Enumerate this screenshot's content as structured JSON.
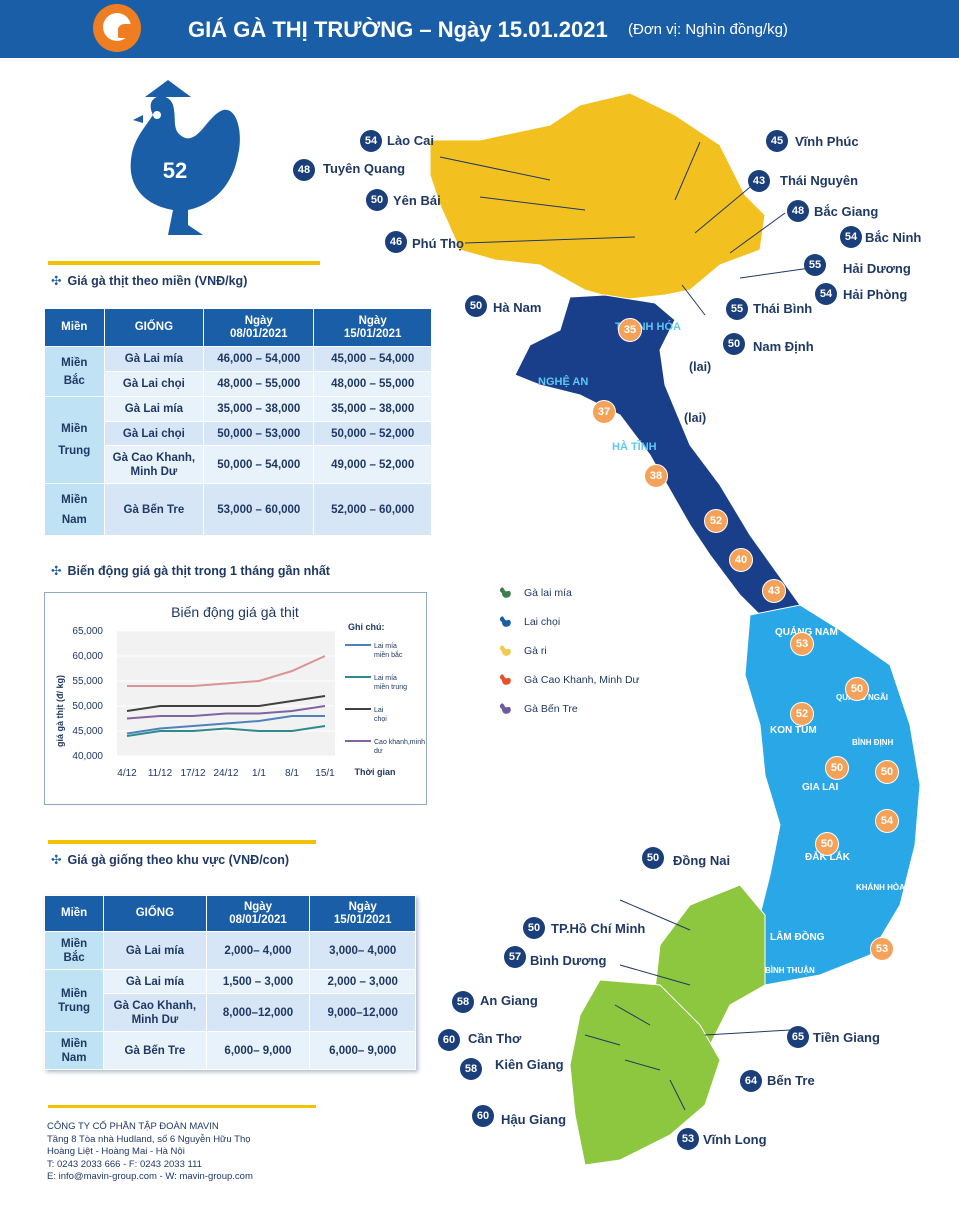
{
  "header": {
    "title": "GIÁ GÀ THỊ TRƯỜNG – Ngày 15.01.2021",
    "unit": "(Đơn vị: Nghìn đồng/kg)"
  },
  "hero": {
    "value": "52"
  },
  "regional_meat": {
    "title": "Giá gà thịt theo miền (VNĐ/kg)",
    "headers": [
      "Miền",
      "GIỐNG",
      "Ngày\n08/01/2021",
      "Ngày\n15/01/2021"
    ],
    "rows": [
      {
        "region": "Miền\nBắc",
        "breed": "Gà Lai mía",
        "d1": "46,000 – 54,000",
        "d2": "45,000 – 54,000"
      },
      {
        "region": "",
        "breed": "Gà Lai chọi",
        "d1": "48,000 – 55,000",
        "d2": "48,000 – 55,000"
      },
      {
        "region": "Miền\nTrung",
        "breed": "Gà Lai mía",
        "d1": "35,000 – 38,000",
        "d2": "35,000 – 38,000"
      },
      {
        "region": "",
        "breed": "Gà Lai chọi",
        "d1": "50,000 – 53,000",
        "d2": "50,000 – 52,000"
      },
      {
        "region": "",
        "breed": "Gà Cao Khanh,\nMinh Dư",
        "d1": "50,000 – 54,000",
        "d2": "49,000 – 52,000"
      },
      {
        "region": "Miền\nNam",
        "breed": "Gà Bến Tre",
        "d1": "53,000 – 60,000",
        "d2": "52,000 – 60,000"
      }
    ]
  },
  "trend_section": {
    "title": "Biến động giá gà thịt trong 1 tháng gần nhất"
  },
  "chart_data": {
    "type": "line",
    "title": "Biến động giá gà thịt",
    "xlabel": "Thời gian",
    "ylabel": "giá gà thịt (đ/ kg)",
    "categories": [
      "4/12",
      "11/12",
      "17/12",
      "24/12",
      "1/1",
      "8/1",
      "15/1"
    ],
    "ylim": [
      40000,
      65000
    ],
    "yticks": [
      "40,000",
      "45,000",
      "50,000",
      "55,000",
      "60,000",
      "65,000"
    ],
    "legend_title": "Ghi chú:",
    "legend_position": "right",
    "series": [
      {
        "name": "Lai mía miền bắc",
        "color": "#4f81bd",
        "values": [
          44500,
          45500,
          46000,
          46500,
          47000,
          48000,
          48000
        ]
      },
      {
        "name": "Lai mía miền trung",
        "color": "#2f8b8b",
        "values": [
          44000,
          45000,
          45000,
          45500,
          45000,
          45000,
          46000
        ]
      },
      {
        "name": "Lai chọi",
        "color": "#404040",
        "values": [
          49000,
          50000,
          50000,
          50000,
          50000,
          51000,
          52000
        ]
      },
      {
        "name": "Cao khanh,minh dư",
        "color": "#8064a2",
        "values": [
          47500,
          48000,
          48000,
          48500,
          48500,
          49000,
          50000
        ]
      },
      {
        "name": "",
        "color": "#d99594",
        "values": [
          54000,
          54000,
          54000,
          54500,
          55000,
          57000,
          60000
        ]
      }
    ]
  },
  "seed_section": {
    "title": "Giá gà giống theo khu vực (VNĐ/con)"
  },
  "seed_table": {
    "headers": [
      "Miền",
      "GIỐNG",
      "Ngày\n08/01/2021",
      "Ngày\n15/01/2021"
    ],
    "rows": [
      {
        "region": "Miền\nBắc",
        "breed": "Gà Lai mía",
        "d1": "2,000– 4,000",
        "d2": "3,000– 4,000"
      },
      {
        "region": "Miền\nTrung",
        "breed": "Gà Lai mía",
        "d1": "1,500 – 3,000",
        "d2": "2,000 – 3,000"
      },
      {
        "region": "",
        "breed": "Gà Cao Khanh,\nMinh Dư",
        "d1": "8,000–12,000",
        "d2": "9,000–12,000"
      },
      {
        "region": "Miền\nNam",
        "breed": "Gà Bến Tre",
        "d1": "6,000– 9,000",
        "d2": "6,000– 9,000"
      }
    ]
  },
  "footer": {
    "company": "CÔNG TY CỔ PHẦN TẬP ĐOÀN MAVIN",
    "address1": "Tầng 8 Tòa nhà Hudland, số 6 Nguyễn Hữu Thọ",
    "address2": "Hoàng Liệt - Hoàng Mai - Hà Nội",
    "phone": "T: 0243 2033 666 - F: 0243 2033 111",
    "email": "E: info@mavin-group.com -  W: mavin-group.com"
  },
  "map": {
    "legend": [
      {
        "label": "Gà lai mía",
        "color": "#3f7f4f"
      },
      {
        "label": "Lai chọi",
        "color": "#1a5ea8"
      },
      {
        "label": "Gà ri",
        "color": "#f2c94c"
      },
      {
        "label": "Gà Cao Khanh, Minh Dư",
        "color": "#e8502a"
      },
      {
        "label": "Gà Bến Tre",
        "color": "#6e5a9c"
      }
    ],
    "north": [
      {
        "value": "54",
        "name": "Lào Cai"
      },
      {
        "value": "48",
        "name": "Tuyên Quang"
      },
      {
        "value": "50",
        "name": "Yên Bái"
      },
      {
        "value": "46",
        "name": "Phú Thọ"
      },
      {
        "value": "50",
        "name": "Hà Nam"
      },
      {
        "value": "45",
        "name": "Vĩnh Phúc"
      },
      {
        "value": "43",
        "name": "Thái Nguyên"
      },
      {
        "value": "48",
        "name": "Bắc Giang"
      },
      {
        "value": "54",
        "name": "Bắc Ninh"
      },
      {
        "value": "55",
        "name": "Hải Dương"
      },
      {
        "value": "54",
        "name": "Hải Phòng"
      },
      {
        "value": "55",
        "name": "Thái Bình"
      },
      {
        "value": "50",
        "name": "Nam Định"
      }
    ],
    "central": [
      "35",
      "37",
      "38",
      "52",
      "40",
      "43",
      "53",
      "50",
      "52",
      "50",
      "50",
      "54",
      "50",
      "53"
    ],
    "lai_labels": [
      "(lai)",
      "(lai)"
    ],
    "south": [
      {
        "value": "50",
        "name": "Đồng Nai"
      },
      {
        "value": "50",
        "name": "TP.Hồ Chí Minh"
      },
      {
        "value": "57",
        "name": "Bình Dương"
      },
      {
        "value": "58",
        "name": "An Giang"
      },
      {
        "value": "60",
        "name": "Cần Thơ"
      },
      {
        "value": "58",
        "name": "Kiên Giang"
      },
      {
        "value": "60",
        "name": "Hậu Giang"
      },
      {
        "value": "65",
        "name": "Tiền Giang"
      },
      {
        "value": "64",
        "name": "Bến Tre"
      },
      {
        "value": "53",
        "name": "Vĩnh Long"
      }
    ],
    "region_labels": {
      "r1": "THANH HÓA",
      "r2": "NGHỆ AN",
      "r3": "HÀ TĨNH",
      "r4": "QUẢNG NAM",
      "r5": "KON TUM",
      "r6": "GIA LAI",
      "r7": "ĐẮK LẮK",
      "r8": "LÂM ĐỒNG",
      "r9": "BÌNH ĐỊNH",
      "r10": "QUẢNG NGÃI",
      "r11": "KHÁNH HÒA",
      "r12": "BÌNH THUẬN"
    }
  }
}
